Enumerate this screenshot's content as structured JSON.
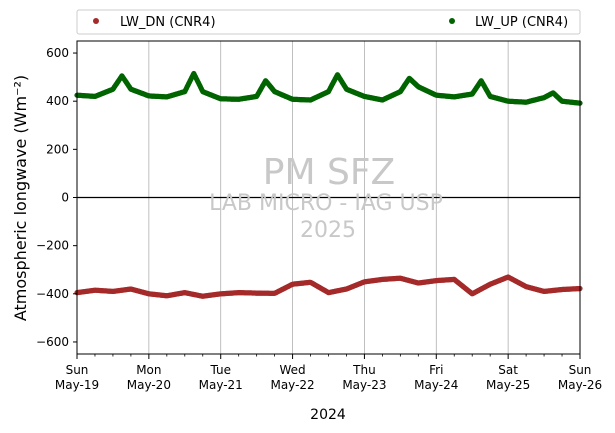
{
  "chart_data": {
    "type": "scatter",
    "ylabel": "Atmospheric longwave (Wm⁻²)",
    "xlabel": "2024",
    "ylim": [
      -650,
      650
    ],
    "yticks": [
      -600,
      -400,
      -200,
      0,
      200,
      400,
      600
    ],
    "xlim": [
      "2024-05-19 00:00",
      "2024-05-26 00:00"
    ],
    "xticks": [
      {
        "date": "2024-05-19",
        "day": "Sun",
        "label": "May-19"
      },
      {
        "date": "2024-05-20",
        "day": "Mon",
        "label": "May-20"
      },
      {
        "date": "2024-05-21",
        "day": "Tue",
        "label": "May-21"
      },
      {
        "date": "2024-05-22",
        "day": "Wed",
        "label": "May-22"
      },
      {
        "date": "2024-05-23",
        "day": "Thu",
        "label": "May-23"
      },
      {
        "date": "2024-05-24",
        "day": "Fri",
        "label": "May-24"
      },
      {
        "date": "2024-05-25",
        "day": "Sat",
        "label": "May-25"
      },
      {
        "date": "2024-05-26",
        "day": "Sun",
        "label": "May-26"
      }
    ],
    "grid": "vertical",
    "zero_line": true,
    "legend_placement": "above-plot",
    "watermark": [
      "PM SFZ",
      "LAB MICRO - IAG USP",
      "2025"
    ],
    "series": [
      {
        "name": "LW_DN (CNR4)",
        "color": "#a52a2a",
        "points": [
          [
            "2024-05-19 00:00",
            -395
          ],
          [
            "2024-05-19 06:00",
            -385
          ],
          [
            "2024-05-19 12:00",
            -390
          ],
          [
            "2024-05-19 18:00",
            -380
          ],
          [
            "2024-05-20 00:00",
            -400
          ],
          [
            "2024-05-20 06:00",
            -408
          ],
          [
            "2024-05-20 12:00",
            -395
          ],
          [
            "2024-05-20 18:00",
            -410
          ],
          [
            "2024-05-21 00:00",
            -400
          ],
          [
            "2024-05-21 06:00",
            -395
          ],
          [
            "2024-05-21 12:00",
            -397
          ],
          [
            "2024-05-21 18:00",
            -398
          ],
          [
            "2024-05-22 00:00",
            -360
          ],
          [
            "2024-05-22 06:00",
            -352
          ],
          [
            "2024-05-22 12:00",
            -395
          ],
          [
            "2024-05-22 18:00",
            -380
          ],
          [
            "2024-05-23 00:00",
            -350
          ],
          [
            "2024-05-23 06:00",
            -340
          ],
          [
            "2024-05-23 12:00",
            -335
          ],
          [
            "2024-05-23 18:00",
            -355
          ],
          [
            "2024-05-24 00:00",
            -345
          ],
          [
            "2024-05-24 06:00",
            -340
          ],
          [
            "2024-05-24 12:00",
            -400
          ],
          [
            "2024-05-24 18:00",
            -360
          ],
          [
            "2024-05-25 00:00",
            -330
          ],
          [
            "2024-05-25 06:00",
            -370
          ],
          [
            "2024-05-25 12:00",
            -390
          ],
          [
            "2024-05-25 18:00",
            -382
          ],
          [
            "2024-05-26 00:00",
            -378
          ]
        ]
      },
      {
        "name": "LW_UP (CNR4)",
        "color": "#006400",
        "points": [
          [
            "2024-05-19 00:00",
            425
          ],
          [
            "2024-05-19 06:00",
            420
          ],
          [
            "2024-05-19 12:00",
            450
          ],
          [
            "2024-05-19 15:00",
            505
          ],
          [
            "2024-05-19 18:00",
            450
          ],
          [
            "2024-05-20 00:00",
            422
          ],
          [
            "2024-05-20 06:00",
            418
          ],
          [
            "2024-05-20 12:00",
            440
          ],
          [
            "2024-05-20 15:00",
            515
          ],
          [
            "2024-05-20 18:00",
            440
          ],
          [
            "2024-05-21 00:00",
            410
          ],
          [
            "2024-05-21 06:00",
            408
          ],
          [
            "2024-05-21 12:00",
            420
          ],
          [
            "2024-05-21 15:00",
            485
          ],
          [
            "2024-05-21 18:00",
            440
          ],
          [
            "2024-05-22 00:00",
            408
          ],
          [
            "2024-05-22 06:00",
            405
          ],
          [
            "2024-05-22 12:00",
            440
          ],
          [
            "2024-05-22 15:00",
            510
          ],
          [
            "2024-05-22 18:00",
            450
          ],
          [
            "2024-05-23 00:00",
            420
          ],
          [
            "2024-05-23 06:00",
            405
          ],
          [
            "2024-05-23 12:00",
            440
          ],
          [
            "2024-05-23 15:00",
            495
          ],
          [
            "2024-05-23 18:00",
            460
          ],
          [
            "2024-05-24 00:00",
            425
          ],
          [
            "2024-05-24 06:00",
            418
          ],
          [
            "2024-05-24 12:00",
            430
          ],
          [
            "2024-05-24 15:00",
            485
          ],
          [
            "2024-05-24 18:00",
            420
          ],
          [
            "2024-05-25 00:00",
            400
          ],
          [
            "2024-05-25 06:00",
            396
          ],
          [
            "2024-05-25 12:00",
            415
          ],
          [
            "2024-05-25 15:00",
            435
          ],
          [
            "2024-05-25 18:00",
            400
          ],
          [
            "2024-05-26 00:00",
            392
          ]
        ]
      }
    ]
  }
}
